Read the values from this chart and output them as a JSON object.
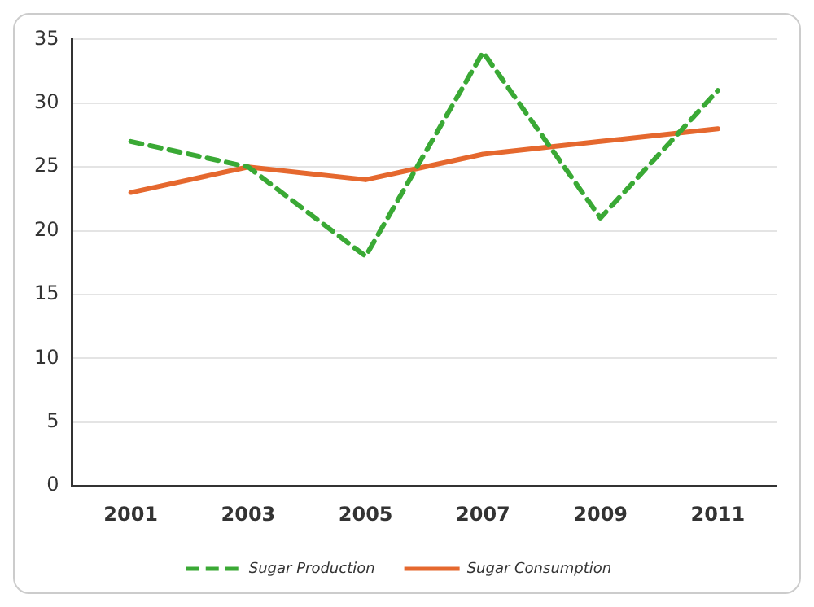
{
  "chart_data": {
    "type": "line",
    "categories": [
      "2001",
      "2003",
      "2005",
      "2007",
      "2009",
      "2011"
    ],
    "series": [
      {
        "name": "Sugar Production",
        "color": "#3aa935",
        "line_style": "dashed",
        "values": [
          27,
          25,
          18,
          34,
          21,
          31
        ]
      },
      {
        "name": "Sugar Consumption",
        "color": "#e5682e",
        "line_style": "solid",
        "values": [
          23,
          25,
          24,
          26,
          27,
          28
        ]
      }
    ],
    "ylim": [
      0,
      35
    ],
    "yticks": [
      0,
      5,
      10,
      15,
      20,
      25,
      30,
      35
    ],
    "grid": "y",
    "legend": "bottom",
    "marker": "none"
  }
}
